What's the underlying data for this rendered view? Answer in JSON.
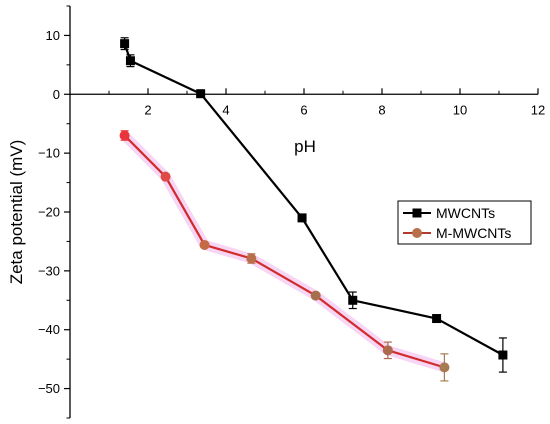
{
  "chart_data": {
    "type": "line",
    "title": "",
    "xlabel": "pH",
    "ylabel": "Zeta potential (mV)",
    "xlim": [
      0,
      12
    ],
    "ylim": [
      -55,
      15
    ],
    "x_ticks": [
      2,
      4,
      6,
      8,
      10,
      12
    ],
    "y_ticks": [
      10,
      0,
      -10,
      -20,
      -30,
      -40,
      -50
    ],
    "grid": false,
    "legend_position": "right",
    "series": [
      {
        "name": "MWCNTs",
        "color": "#000000",
        "marker": "square",
        "x": [
          1.4,
          1.55,
          3.35,
          5.95,
          7.25,
          9.4,
          11.1
        ],
        "y": [
          8.6,
          5.7,
          0.1,
          -21.0,
          -35.0,
          -38.1,
          -44.3
        ],
        "error": [
          1.0,
          1.0,
          0.3,
          0.4,
          1.4,
          0.4,
          2.9
        ]
      },
      {
        "name": "M-MWCNTs",
        "color": "#b03a2e",
        "marker": "circle",
        "x": [
          1.4,
          2.45,
          3.45,
          4.65,
          6.3,
          8.15,
          9.6
        ],
        "y": [
          -7.0,
          -14.0,
          -25.6,
          -27.9,
          -34.2,
          -43.5,
          -46.4
        ],
        "error": [
          0.8,
          0.3,
          0.3,
          0.8,
          0.3,
          1.4,
          2.3
        ]
      }
    ]
  }
}
